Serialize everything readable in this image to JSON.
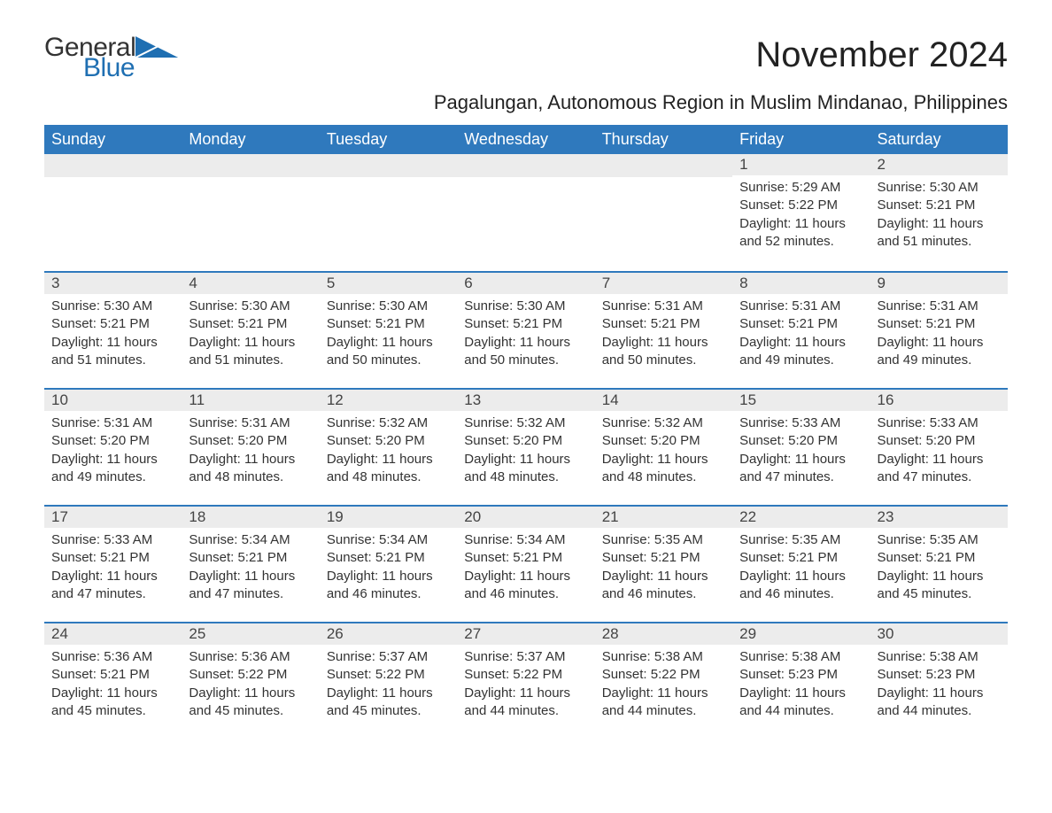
{
  "logo": {
    "text1": "General",
    "text2": "Blue",
    "triangle_color": "#1f6fb2"
  },
  "title": "November 2024",
  "location": "Pagalungan, Autonomous Region in Muslim Mindanao, Philippines",
  "colors": {
    "header_bg": "#2f79bd",
    "header_text": "#ffffff",
    "daynum_bg": "#ececec",
    "row_border": "#2f79bd",
    "body_text": "#333333",
    "title_text": "#222222"
  },
  "fonts": {
    "title_pt": 40,
    "location_pt": 22,
    "th_pt": 18,
    "daynum_pt": 17,
    "body_pt": 15
  },
  "day_headers": [
    "Sunday",
    "Monday",
    "Tuesday",
    "Wednesday",
    "Thursday",
    "Friday",
    "Saturday"
  ],
  "weeks": [
    [
      null,
      null,
      null,
      null,
      null,
      {
        "n": "1",
        "sunrise": "Sunrise: 5:29 AM",
        "sunset": "Sunset: 5:22 PM",
        "daylight": "Daylight: 11 hours and 52 minutes."
      },
      {
        "n": "2",
        "sunrise": "Sunrise: 5:30 AM",
        "sunset": "Sunset: 5:21 PM",
        "daylight": "Daylight: 11 hours and 51 minutes."
      }
    ],
    [
      {
        "n": "3",
        "sunrise": "Sunrise: 5:30 AM",
        "sunset": "Sunset: 5:21 PM",
        "daylight": "Daylight: 11 hours and 51 minutes."
      },
      {
        "n": "4",
        "sunrise": "Sunrise: 5:30 AM",
        "sunset": "Sunset: 5:21 PM",
        "daylight": "Daylight: 11 hours and 51 minutes."
      },
      {
        "n": "5",
        "sunrise": "Sunrise: 5:30 AM",
        "sunset": "Sunset: 5:21 PM",
        "daylight": "Daylight: 11 hours and 50 minutes."
      },
      {
        "n": "6",
        "sunrise": "Sunrise: 5:30 AM",
        "sunset": "Sunset: 5:21 PM",
        "daylight": "Daylight: 11 hours and 50 minutes."
      },
      {
        "n": "7",
        "sunrise": "Sunrise: 5:31 AM",
        "sunset": "Sunset: 5:21 PM",
        "daylight": "Daylight: 11 hours and 50 minutes."
      },
      {
        "n": "8",
        "sunrise": "Sunrise: 5:31 AM",
        "sunset": "Sunset: 5:21 PM",
        "daylight": "Daylight: 11 hours and 49 minutes."
      },
      {
        "n": "9",
        "sunrise": "Sunrise: 5:31 AM",
        "sunset": "Sunset: 5:21 PM",
        "daylight": "Daylight: 11 hours and 49 minutes."
      }
    ],
    [
      {
        "n": "10",
        "sunrise": "Sunrise: 5:31 AM",
        "sunset": "Sunset: 5:20 PM",
        "daylight": "Daylight: 11 hours and 49 minutes."
      },
      {
        "n": "11",
        "sunrise": "Sunrise: 5:31 AM",
        "sunset": "Sunset: 5:20 PM",
        "daylight": "Daylight: 11 hours and 48 minutes."
      },
      {
        "n": "12",
        "sunrise": "Sunrise: 5:32 AM",
        "sunset": "Sunset: 5:20 PM",
        "daylight": "Daylight: 11 hours and 48 minutes."
      },
      {
        "n": "13",
        "sunrise": "Sunrise: 5:32 AM",
        "sunset": "Sunset: 5:20 PM",
        "daylight": "Daylight: 11 hours and 48 minutes."
      },
      {
        "n": "14",
        "sunrise": "Sunrise: 5:32 AM",
        "sunset": "Sunset: 5:20 PM",
        "daylight": "Daylight: 11 hours and 48 minutes."
      },
      {
        "n": "15",
        "sunrise": "Sunrise: 5:33 AM",
        "sunset": "Sunset: 5:20 PM",
        "daylight": "Daylight: 11 hours and 47 minutes."
      },
      {
        "n": "16",
        "sunrise": "Sunrise: 5:33 AM",
        "sunset": "Sunset: 5:20 PM",
        "daylight": "Daylight: 11 hours and 47 minutes."
      }
    ],
    [
      {
        "n": "17",
        "sunrise": "Sunrise: 5:33 AM",
        "sunset": "Sunset: 5:21 PM",
        "daylight": "Daylight: 11 hours and 47 minutes."
      },
      {
        "n": "18",
        "sunrise": "Sunrise: 5:34 AM",
        "sunset": "Sunset: 5:21 PM",
        "daylight": "Daylight: 11 hours and 47 minutes."
      },
      {
        "n": "19",
        "sunrise": "Sunrise: 5:34 AM",
        "sunset": "Sunset: 5:21 PM",
        "daylight": "Daylight: 11 hours and 46 minutes."
      },
      {
        "n": "20",
        "sunrise": "Sunrise: 5:34 AM",
        "sunset": "Sunset: 5:21 PM",
        "daylight": "Daylight: 11 hours and 46 minutes."
      },
      {
        "n": "21",
        "sunrise": "Sunrise: 5:35 AM",
        "sunset": "Sunset: 5:21 PM",
        "daylight": "Daylight: 11 hours and 46 minutes."
      },
      {
        "n": "22",
        "sunrise": "Sunrise: 5:35 AM",
        "sunset": "Sunset: 5:21 PM",
        "daylight": "Daylight: 11 hours and 46 minutes."
      },
      {
        "n": "23",
        "sunrise": "Sunrise: 5:35 AM",
        "sunset": "Sunset: 5:21 PM",
        "daylight": "Daylight: 11 hours and 45 minutes."
      }
    ],
    [
      {
        "n": "24",
        "sunrise": "Sunrise: 5:36 AM",
        "sunset": "Sunset: 5:21 PM",
        "daylight": "Daylight: 11 hours and 45 minutes."
      },
      {
        "n": "25",
        "sunrise": "Sunrise: 5:36 AM",
        "sunset": "Sunset: 5:22 PM",
        "daylight": "Daylight: 11 hours and 45 minutes."
      },
      {
        "n": "26",
        "sunrise": "Sunrise: 5:37 AM",
        "sunset": "Sunset: 5:22 PM",
        "daylight": "Daylight: 11 hours and 45 minutes."
      },
      {
        "n": "27",
        "sunrise": "Sunrise: 5:37 AM",
        "sunset": "Sunset: 5:22 PM",
        "daylight": "Daylight: 11 hours and 44 minutes."
      },
      {
        "n": "28",
        "sunrise": "Sunrise: 5:38 AM",
        "sunset": "Sunset: 5:22 PM",
        "daylight": "Daylight: 11 hours and 44 minutes."
      },
      {
        "n": "29",
        "sunrise": "Sunrise: 5:38 AM",
        "sunset": "Sunset: 5:23 PM",
        "daylight": "Daylight: 11 hours and 44 minutes."
      },
      {
        "n": "30",
        "sunrise": "Sunrise: 5:38 AM",
        "sunset": "Sunset: 5:23 PM",
        "daylight": "Daylight: 11 hours and 44 minutes."
      }
    ]
  ]
}
